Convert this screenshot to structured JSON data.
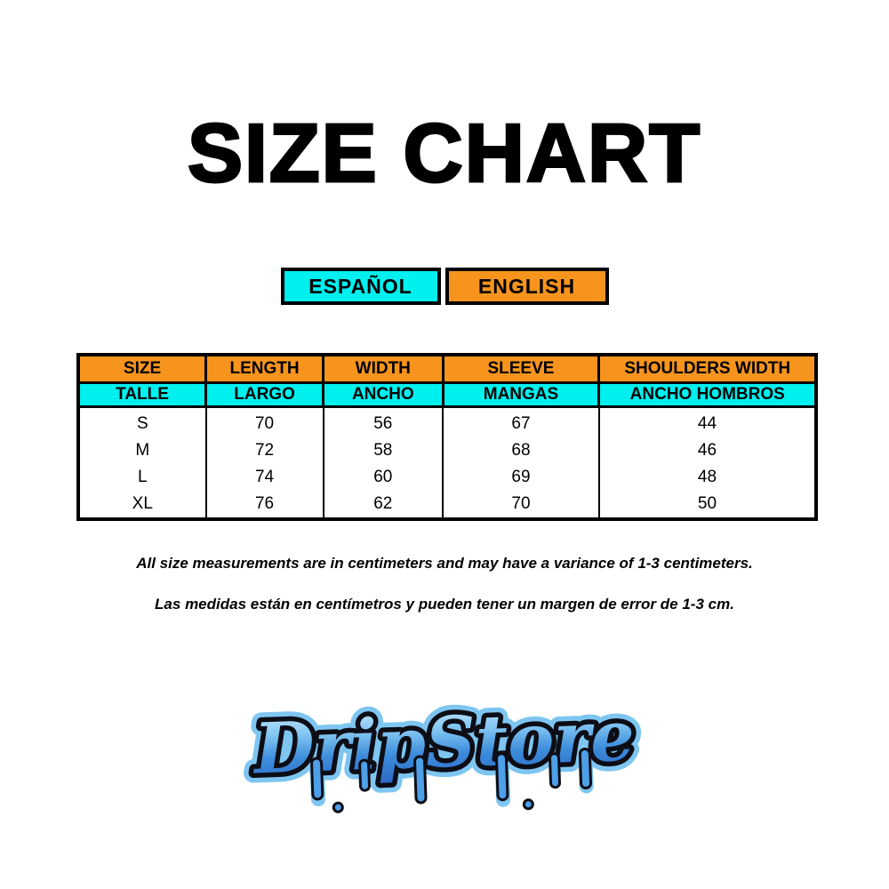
{
  "page": {
    "background_color": "#FFFFFF"
  },
  "title": "SIZE CHART",
  "language_tabs": {
    "spanish": {
      "label": "ESPAÑOL",
      "color": "#00EFEF"
    },
    "english": {
      "label": "ENGLISH",
      "color": "#F7941D"
    }
  },
  "size_table": {
    "header_en": [
      "SIZE",
      "LENGTH",
      "WIDTH",
      "SLEEVE",
      "SHOULDERS WIDTH"
    ],
    "header_es": [
      "TALLE",
      "LARGO",
      "ANCHO",
      "MANGAS",
      "ANCHO HOMBROS"
    ],
    "rows": [
      [
        "S",
        "70",
        "56",
        "67",
        "44"
      ],
      [
        "M",
        "72",
        "58",
        "68",
        "46"
      ],
      [
        "L",
        "74",
        "60",
        "69",
        "48"
      ],
      [
        "XL",
        "76",
        "62",
        "70",
        "50"
      ]
    ],
    "header_en_color": "#F7941D",
    "header_es_color": "#00EFEF",
    "border_color": "#000000"
  },
  "notes": {
    "english": "All size measurements are in centimeters and may have a variance of 1-3 centimeters.",
    "spanish": "Las medidas están en centímetros y pueden tener un margen de error de 1-3 cm."
  },
  "logo": {
    "text": "DripStore",
    "colors": {
      "gradient_top": "#C9ECFC",
      "gradient_mid": "#4D9FE8",
      "gradient_bottom": "#2A66C4",
      "outline": "#0D0D16",
      "halo": "#7EC6F1"
    }
  }
}
